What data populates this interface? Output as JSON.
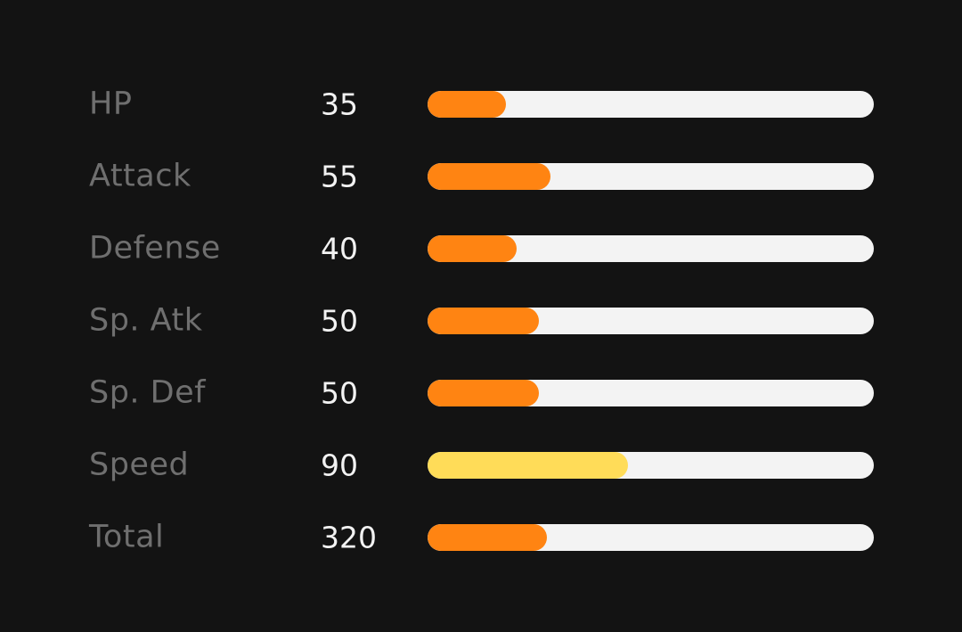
{
  "stats": {
    "max_value": 255,
    "total_max_value": 1200,
    "colors": {
      "normal": "#ff8412",
      "high": "#ffdc58",
      "track": "#f3f3f3",
      "label": "#6f6f6f",
      "value": "#f2f2f2",
      "background": "#131313"
    },
    "rows": [
      {
        "label": "HP",
        "value": "35",
        "fill": 0.176,
        "color": "#ff8412"
      },
      {
        "label": "Attack",
        "value": "55",
        "fill": 0.275,
        "color": "#ff8412"
      },
      {
        "label": "Defense",
        "value": "40",
        "fill": 0.2,
        "color": "#ff8412"
      },
      {
        "label": "Sp. Atk",
        "value": "50",
        "fill": 0.25,
        "color": "#ff8412"
      },
      {
        "label": "Sp. Def",
        "value": "50",
        "fill": 0.25,
        "color": "#ff8412"
      },
      {
        "label": "Speed",
        "value": "90",
        "fill": 0.45,
        "color": "#ffdc58"
      },
      {
        "label": "Total",
        "value": "320",
        "fill": 0.267,
        "color": "#ff8412"
      }
    ]
  }
}
